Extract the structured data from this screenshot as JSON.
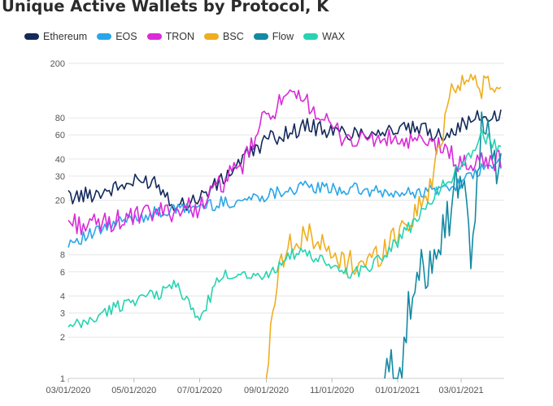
{
  "chart_data": {
    "type": "line",
    "title": "Unique Active Wallets by Protocol, K",
    "xlabel": "",
    "ylabel": "",
    "yscale": "log",
    "ylim": [
      1,
      200
    ],
    "yticks": [
      1,
      2,
      3,
      4,
      6,
      8,
      20,
      30,
      40,
      60,
      80,
      200
    ],
    "xlim": [
      "2020-03-01",
      "2021-04-10"
    ],
    "xticks": [
      "03/01/2020",
      "05/01/2020",
      "07/01/2020",
      "09/01/2020",
      "11/01/2020",
      "01/01/2021",
      "03/01/2021"
    ],
    "grid": true,
    "legend_position": "top",
    "series": [
      {
        "name": "Ethereum",
        "color": "#142a5c",
        "x": [
          "2020-03-01",
          "2020-03-20",
          "2020-04-10",
          "2020-05-01",
          "2020-05-20",
          "2020-06-10",
          "2020-07-01",
          "2020-07-20",
          "2020-08-10",
          "2020-09-01",
          "2020-09-20",
          "2020-10-10",
          "2020-11-01",
          "2020-11-20",
          "2020-12-10",
          "2021-01-01",
          "2021-01-20",
          "2021-02-10",
          "2021-03-01",
          "2021-03-20",
          "2021-04-08"
        ],
        "values": [
          21,
          22,
          24,
          27,
          28,
          18,
          21,
          27,
          40,
          55,
          62,
          70,
          63,
          62,
          64,
          65,
          66,
          60,
          70,
          82,
          80
        ]
      },
      {
        "name": "EOS",
        "color": "#2aa6e8",
        "x": [
          "2020-03-01",
          "2020-03-20",
          "2020-04-10",
          "2020-05-01",
          "2020-05-20",
          "2020-06-10",
          "2020-07-01",
          "2020-07-20",
          "2020-08-10",
          "2020-09-01",
          "2020-09-20",
          "2020-10-10",
          "2020-11-01",
          "2020-11-20",
          "2020-12-10",
          "2021-01-01",
          "2021-01-20",
          "2021-02-10",
          "2021-03-01",
          "2021-03-20",
          "2021-04-08"
        ],
        "values": [
          10,
          11,
          13,
          15,
          16,
          17,
          18,
          19,
          20,
          22,
          24,
          25,
          24,
          24,
          23,
          22,
          23,
          24,
          27,
          33,
          38
        ]
      },
      {
        "name": "TRON",
        "color": "#d92bd9",
        "x": [
          "2020-03-01",
          "2020-03-20",
          "2020-04-10",
          "2020-05-01",
          "2020-05-20",
          "2020-06-10",
          "2020-07-01",
          "2020-07-20",
          "2020-08-10",
          "2020-09-01",
          "2020-09-20",
          "2020-10-10",
          "2020-11-01",
          "2020-11-20",
          "2020-12-10",
          "2021-01-01",
          "2021-01-20",
          "2021-02-10",
          "2021-03-01",
          "2021-03-20",
          "2021-04-08"
        ],
        "values": [
          14,
          13,
          14,
          15,
          16,
          17,
          18,
          26,
          36,
          85,
          110,
          105,
          65,
          55,
          56,
          54,
          52,
          50,
          36,
          38,
          40
        ]
      },
      {
        "name": "BSC",
        "color": "#efae1e",
        "x": [
          "2020-09-01",
          "2020-09-10",
          "2020-09-20",
          "2020-10-01",
          "2020-10-10",
          "2020-10-20",
          "2020-11-01",
          "2020-11-15",
          "2020-12-01",
          "2020-12-15",
          "2021-01-01",
          "2021-01-15",
          "2021-02-01",
          "2021-02-10",
          "2021-02-20",
          "2021-03-01",
          "2021-03-15",
          "2021-04-08"
        ],
        "values": [
          1,
          5,
          10,
          9,
          12,
          10,
          7.5,
          7,
          7,
          8,
          12,
          15,
          25,
          55,
          140,
          150,
          145,
          120
        ]
      },
      {
        "name": "Flow",
        "color": "#1389a2",
        "x": [
          "2020-12-20",
          "2020-12-25",
          "2021-01-01",
          "2021-01-05",
          "2021-01-10",
          "2021-01-15",
          "2021-01-25",
          "2021-02-05",
          "2021-02-15",
          "2021-02-25",
          "2021-03-05",
          "2021-03-10",
          "2021-03-20",
          "2021-03-28",
          "2021-04-08"
        ],
        "values": [
          1,
          1.1,
          1.2,
          1.5,
          2.5,
          4,
          6,
          10,
          14,
          25,
          40,
          4,
          90,
          50,
          30
        ]
      },
      {
        "name": "WAX",
        "color": "#27d3b1",
        "x": [
          "2020-03-01",
          "2020-03-20",
          "2020-04-10",
          "2020-05-01",
          "2020-05-20",
          "2020-06-10",
          "2020-06-25",
          "2020-07-01",
          "2020-07-20",
          "2020-08-10",
          "2020-09-01",
          "2020-09-20",
          "2020-10-10",
          "2020-11-01",
          "2020-11-20",
          "2020-12-10",
          "2021-01-01",
          "2021-01-20",
          "2021-02-10",
          "2021-03-01",
          "2021-03-20",
          "2021-04-08"
        ],
        "values": [
          2.3,
          2.6,
          3.2,
          3.8,
          4,
          5,
          3,
          2.7,
          5.5,
          6,
          5.5,
          8,
          8,
          6.5,
          5.8,
          7,
          10,
          15,
          25,
          35,
          60,
          45
        ]
      }
    ]
  }
}
